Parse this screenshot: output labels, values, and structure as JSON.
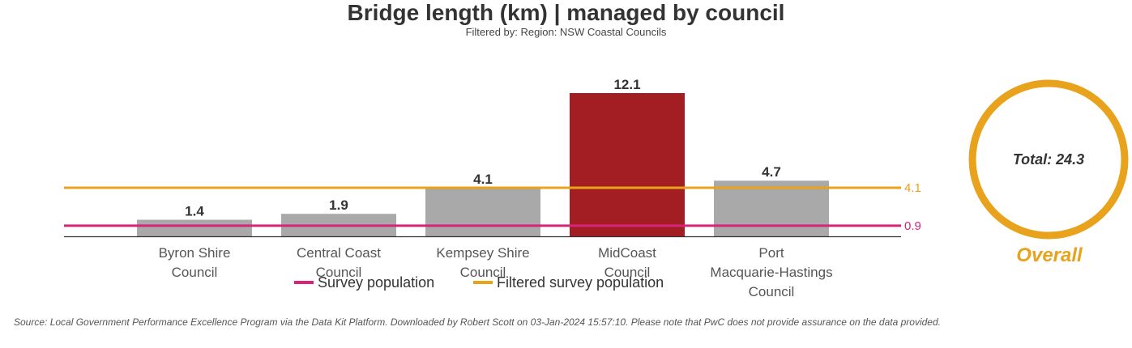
{
  "chart_data": {
    "type": "bar",
    "title": "Bridge length (km) | managed by council",
    "subtitle": "Filtered by: Region: NSW Coastal Councils",
    "categories": [
      [
        "Byron Shire",
        "Council"
      ],
      [
        "Central Coast",
        "Council"
      ],
      [
        "Kempsey Shire",
        "Council"
      ],
      [
        "MidCoast",
        "Council"
      ],
      [
        "Port",
        "Macquarie-Hastings",
        "Council"
      ]
    ],
    "values": [
      1.4,
      1.9,
      4.1,
      12.1,
      4.7
    ],
    "value_labels": [
      "1.4",
      "1.9",
      "4.1",
      "12.1",
      "4.7"
    ],
    "highlight_index": 3,
    "ylim": [
      0,
      12.1
    ],
    "reference_lines": [
      {
        "name": "Survey population",
        "value": 0.9,
        "label": "0.9",
        "color": "#d6247a"
      },
      {
        "name": "Filtered survey population",
        "value": 4.1,
        "label": "4.1",
        "color": "#e8a21c"
      }
    ],
    "legend_position": "bottom-center",
    "grid": false,
    "total": {
      "label": "Total: 24.3",
      "caption": "Overall"
    },
    "colors": {
      "bar": "#a9a9a9",
      "highlight_bar": "#a31e22",
      "highlight_text": "#a31e22",
      "ring": "#e8a21c"
    }
  },
  "source_note": "Source: Local Government Performance Excellence Program via the Data Kit Platform. Downloaded by Robert Scott on 03-Jan-2024 15:57:10. Please note that PwC does not provide assurance on the data provided."
}
